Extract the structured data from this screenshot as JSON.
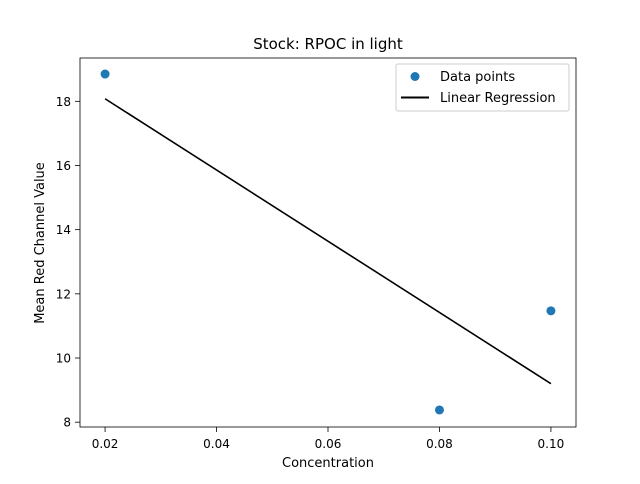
{
  "chart_data": {
    "type": "scatter",
    "title": "Stock: RPOC in light",
    "xlabel": "Concentration",
    "ylabel": "Mean Red Channel Value",
    "xlim": [
      0.0155,
      0.1045
    ],
    "ylim": [
      7.85,
      19.35
    ],
    "xticks": [
      "0.02",
      "0.04",
      "0.06",
      "0.08",
      "0.10"
    ],
    "xtick_values": [
      0.02,
      0.04,
      0.06,
      0.08,
      0.1
    ],
    "yticks": [
      "8",
      "10",
      "12",
      "14",
      "16",
      "18"
    ],
    "ytick_values": [
      8,
      10,
      12,
      14,
      16,
      18
    ],
    "grid": false,
    "legend_position": "top-right",
    "series": [
      {
        "name": "Data points",
        "kind": "scatter",
        "color": "#1f77b4",
        "x": [
          0.02,
          0.08,
          0.1
        ],
        "y": [
          18.85,
          8.38,
          11.47
        ]
      },
      {
        "name": "Linear Regression",
        "kind": "line",
        "color": "#000000",
        "x": [
          0.02,
          0.1
        ],
        "y": [
          18.08,
          9.2
        ]
      }
    ]
  }
}
